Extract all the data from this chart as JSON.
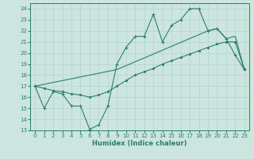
{
  "xlabel": "Humidex (Indice chaleur)",
  "bg_color": "#cce5df",
  "line_color": "#2d7f6e",
  "grid_color": "#b0d4cc",
  "xlim": [
    -0.5,
    23.5
  ],
  "ylim": [
    13,
    24.5
  ],
  "yticks": [
    13,
    14,
    15,
    16,
    17,
    18,
    19,
    20,
    21,
    22,
    23,
    24
  ],
  "xticks": [
    0,
    1,
    2,
    3,
    4,
    5,
    6,
    7,
    8,
    9,
    10,
    11,
    12,
    13,
    14,
    15,
    16,
    17,
    18,
    19,
    20,
    21,
    22,
    23
  ],
  "series1_x": [
    0,
    1,
    2,
    3,
    4,
    5,
    6,
    7,
    8,
    9,
    10,
    11,
    12,
    13,
    14,
    15,
    16,
    17,
    18,
    19,
    20,
    21,
    22,
    23
  ],
  "series1_y": [
    17.0,
    15.0,
    16.5,
    16.3,
    15.2,
    15.2,
    13.1,
    13.5,
    15.2,
    19.0,
    20.5,
    21.5,
    21.5,
    23.5,
    21.0,
    22.5,
    23.0,
    24.0,
    24.0,
    22.0,
    22.2,
    21.3,
    19.8,
    18.5
  ],
  "series2_x": [
    0,
    1,
    2,
    3,
    4,
    5,
    6,
    7,
    8,
    9,
    10,
    11,
    12,
    13,
    14,
    15,
    16,
    17,
    18,
    19,
    20,
    21,
    22,
    23
  ],
  "series2_y": [
    17.0,
    16.8,
    16.6,
    16.5,
    16.3,
    16.2,
    16.0,
    16.2,
    16.5,
    17.0,
    17.5,
    18.0,
    18.3,
    18.6,
    19.0,
    19.3,
    19.6,
    19.9,
    20.2,
    20.5,
    20.8,
    21.0,
    21.0,
    18.5
  ],
  "series3_x": [
    0,
    9,
    19,
    20,
    21,
    22,
    23
  ],
  "series3_y": [
    17.0,
    18.5,
    22.0,
    22.2,
    21.3,
    21.5,
    18.5
  ]
}
